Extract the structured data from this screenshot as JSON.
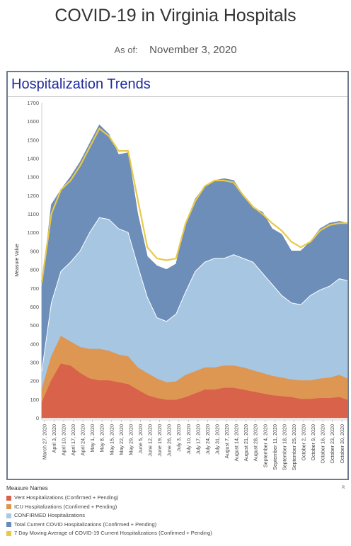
{
  "header": {
    "title": "COVID-19 in Virginia Hospitals",
    "as_of_label": "As of:",
    "as_of_date": "November 3, 2020"
  },
  "panel": {
    "title": "Hospitalization Trends"
  },
  "legend": {
    "title": "Measure Names",
    "items": [
      {
        "label": "Vent Hospitalizations (Confirmed + Pending)",
        "color": "#d9614b"
      },
      {
        "label": "ICU Hospitalizations (Confirmed + Pending)",
        "color": "#e0954f"
      },
      {
        "label": "CONFIRMED Hospitalizations",
        "color": "#a8c8e4"
      },
      {
        "label": "Total Current COVID Hospitalizations (Confirmed + Pending)",
        "color": "#6a8bb8"
      },
      {
        "label": "7 Day Moving Average of COVID-19 Current Hospitalizations (Confirmed + Pending)",
        "color": "#e8c94a"
      }
    ]
  },
  "corner_mark": "ʀ",
  "chart_data": {
    "type": "area",
    "ylabel": "Measure Value",
    "xlabel": "",
    "ylim": [
      0,
      1700
    ],
    "yticks": [
      0,
      100,
      200,
      300,
      400,
      500,
      600,
      700,
      800,
      900,
      1000,
      1100,
      1200,
      1300,
      1400,
      1500,
      1600,
      1700
    ],
    "x_tick_labels": [
      "March 27, 2020",
      "April 3, 2020",
      "April 10, 2020",
      "April 17, 2020",
      "April 24, 2020",
      "May 1, 2020",
      "May 8, 2020",
      "May 15, 2020",
      "May 22, 2020",
      "May 29, 2020",
      "June 5, 2020",
      "June 12, 2020",
      "June 19, 2020",
      "June 26, 2020",
      "July 3, 2020",
      "July 10, 2020",
      "July 17, 2020",
      "July 24, 2020",
      "July 31, 2020",
      "August 7, 2020",
      "August 14, 2020",
      "August 21, 2020",
      "August 28, 2020",
      "September 4, 2020",
      "September 11, 2020",
      "September 18, 2020",
      "September 25, 2020",
      "October 2, 2020",
      "October 9, 2020",
      "October 16, 2020",
      "October 23, 2020",
      "October 30, 2020"
    ],
    "x": [
      "March 25, 2020",
      "April 1, 2020",
      "April 8, 2020",
      "April 15, 2020",
      "April 22, 2020",
      "April 29, 2020",
      "May 6, 2020",
      "May 13, 2020",
      "May 20, 2020",
      "May 27, 2020",
      "June 3, 2020",
      "June 10, 2020",
      "June 17, 2020",
      "June 24, 2020",
      "July 1, 2020",
      "July 8, 2020",
      "July 15, 2020",
      "July 22, 2020",
      "July 29, 2020",
      "August 5, 2020",
      "August 12, 2020",
      "August 19, 2020",
      "August 26, 2020",
      "September 2, 2020",
      "September 9, 2020",
      "September 16, 2020",
      "September 23, 2020",
      "September 30, 2020",
      "October 7, 2020",
      "October 14, 2020",
      "October 21, 2020",
      "October 28, 2020",
      "November 3, 2020"
    ],
    "series": [
      {
        "name": "Vent Hospitalizations (Confirmed + Pending)",
        "values": [
          80,
          200,
          290,
          280,
          240,
          210,
          200,
          200,
          190,
          180,
          150,
          120,
          105,
          95,
          95,
          110,
          130,
          150,
          150,
          160,
          160,
          150,
          140,
          130,
          120,
          115,
          110,
          100,
          100,
          105,
          105,
          110,
          95
        ]
      },
      {
        "name": "ICU Hospitalizations (Confirmed + Pending)",
        "values": [
          150,
          330,
          440,
          410,
          380,
          370,
          370,
          360,
          340,
          330,
          270,
          240,
          210,
          190,
          195,
          230,
          250,
          270,
          270,
          280,
          280,
          270,
          255,
          240,
          225,
          215,
          205,
          200,
          200,
          210,
          215,
          230,
          210
        ]
      },
      {
        "name": "CONFIRMED Hospitalizations",
        "values": [
          250,
          620,
          790,
          840,
          900,
          1000,
          1080,
          1070,
          1020,
          1000,
          820,
          650,
          540,
          520,
          560,
          680,
          790,
          840,
          860,
          860,
          880,
          860,
          840,
          780,
          720,
          660,
          620,
          610,
          660,
          690,
          710,
          750,
          740
        ]
      },
      {
        "name": "Total Current COVID Hospitalizations (Confirmed + Pending)",
        "values": [
          700,
          1150,
          1230,
          1300,
          1380,
          1480,
          1580,
          1530,
          1420,
          1430,
          1100,
          870,
          820,
          800,
          830,
          1050,
          1180,
          1250,
          1280,
          1290,
          1280,
          1200,
          1130,
          1110,
          1020,
          990,
          900,
          900,
          950,
          1020,
          1050,
          1060,
          1050
        ]
      },
      {
        "name": "7 Day Moving Average of COVID-19 Current Hospitalizations (Confirmed + Pending)",
        "values": [
          730,
          1100,
          1230,
          1280,
          1360,
          1460,
          1560,
          1520,
          1440,
          1440,
          1180,
          920,
          860,
          850,
          860,
          1050,
          1170,
          1250,
          1280,
          1280,
          1270,
          1200,
          1140,
          1100,
          1050,
          1010,
          950,
          920,
          950,
          1010,
          1040,
          1050,
          1050
        ]
      }
    ],
    "legend_position": "bottom-left",
    "grid": false
  }
}
